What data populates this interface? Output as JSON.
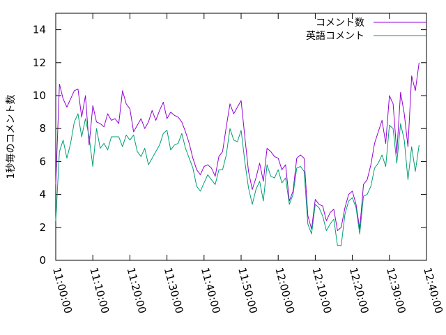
{
  "chart_data": {
    "type": "line",
    "title": "",
    "xlabel": "",
    "ylabel": "1秒毎のコメント数",
    "ylim": [
      0,
      15
    ],
    "yticks": [
      0,
      2,
      4,
      6,
      8,
      10,
      12,
      14
    ],
    "xlim": [
      "11:00:00",
      "12:40:00"
    ],
    "xticks": [
      "11:00:00",
      "11:10:00",
      "11:20:00",
      "11:30:00",
      "11:40:00",
      "11:50:00",
      "12:00:00",
      "12:10:00",
      "12:20:00",
      "12:30:00",
      "12:40:00"
    ],
    "grid": false,
    "legend_position": "top-right",
    "x_step_seconds": 60,
    "x_start": "11:00:00",
    "series": [
      {
        "name": "コメント数",
        "color": "#9400d3",
        "values": [
          4.6,
          10.7,
          9.8,
          9.3,
          9.8,
          10.3,
          10.4,
          8.7,
          10.0,
          7.0,
          9.4,
          8.4,
          8.3,
          8.1,
          8.9,
          8.5,
          8.6,
          8.3,
          10.3,
          9.5,
          9.2,
          7.8,
          8.2,
          8.6,
          8.0,
          8.4,
          9.1,
          8.5,
          9.1,
          9.6,
          8.6,
          9.0,
          8.8,
          8.7,
          8.4,
          7.8,
          7.1,
          6.2,
          5.5,
          5.2,
          5.7,
          5.8,
          5.6,
          5.1,
          6.3,
          6.6,
          8.1,
          9.5,
          8.9,
          9.3,
          9.7,
          7.5,
          5.4,
          4.3,
          5.0,
          5.9,
          4.8,
          6.8,
          6.6,
          6.3,
          6.2,
          5.5,
          5.8,
          3.6,
          4.2,
          6.2,
          6.4,
          6.2,
          2.7,
          1.9,
          3.7,
          3.4,
          3.3,
          2.4,
          2.9,
          3.1,
          1.8,
          2.0,
          3.2,
          4.0,
          4.2,
          3.4,
          1.9,
          4.6,
          4.9,
          5.8,
          7.1,
          7.8,
          8.5,
          7.1,
          10.0,
          9.5,
          6.5,
          10.2,
          8.9,
          6.9,
          11.2,
          10.3,
          12.0
        ]
      },
      {
        "name": "英語コメント",
        "color": "#009e73",
        "values": [
          2.4,
          6.6,
          7.3,
          6.2,
          7.1,
          8.4,
          8.9,
          7.5,
          8.6,
          7.5,
          5.7,
          8.0,
          6.8,
          7.1,
          6.7,
          7.5,
          7.5,
          7.5,
          6.9,
          7.6,
          7.3,
          7.6,
          6.6,
          6.3,
          6.8,
          5.8,
          6.2,
          6.6,
          7.0,
          7.7,
          7.9,
          6.7,
          7.0,
          7.1,
          7.7,
          6.8,
          6.2,
          5.6,
          4.5,
          4.2,
          4.7,
          5.2,
          4.9,
          4.6,
          5.5,
          5.5,
          6.4,
          8.0,
          7.3,
          7.2,
          7.9,
          6.0,
          4.4,
          3.4,
          4.3,
          4.8,
          3.6,
          5.8,
          5.1,
          5.0,
          5.5,
          4.7,
          5.0,
          3.4,
          4.0,
          5.6,
          5.7,
          5.4,
          2.2,
          1.6,
          3.4,
          3.2,
          2.7,
          1.8,
          2.2,
          2.5,
          0.9,
          0.9,
          2.8,
          3.6,
          3.8,
          3.2,
          1.6,
          3.9,
          4.0,
          4.5,
          5.6,
          5.9,
          6.4,
          5.7,
          8.2,
          8.0,
          5.9,
          8.3,
          7.3,
          4.9,
          6.9,
          5.4,
          7.0
        ]
      }
    ]
  }
}
